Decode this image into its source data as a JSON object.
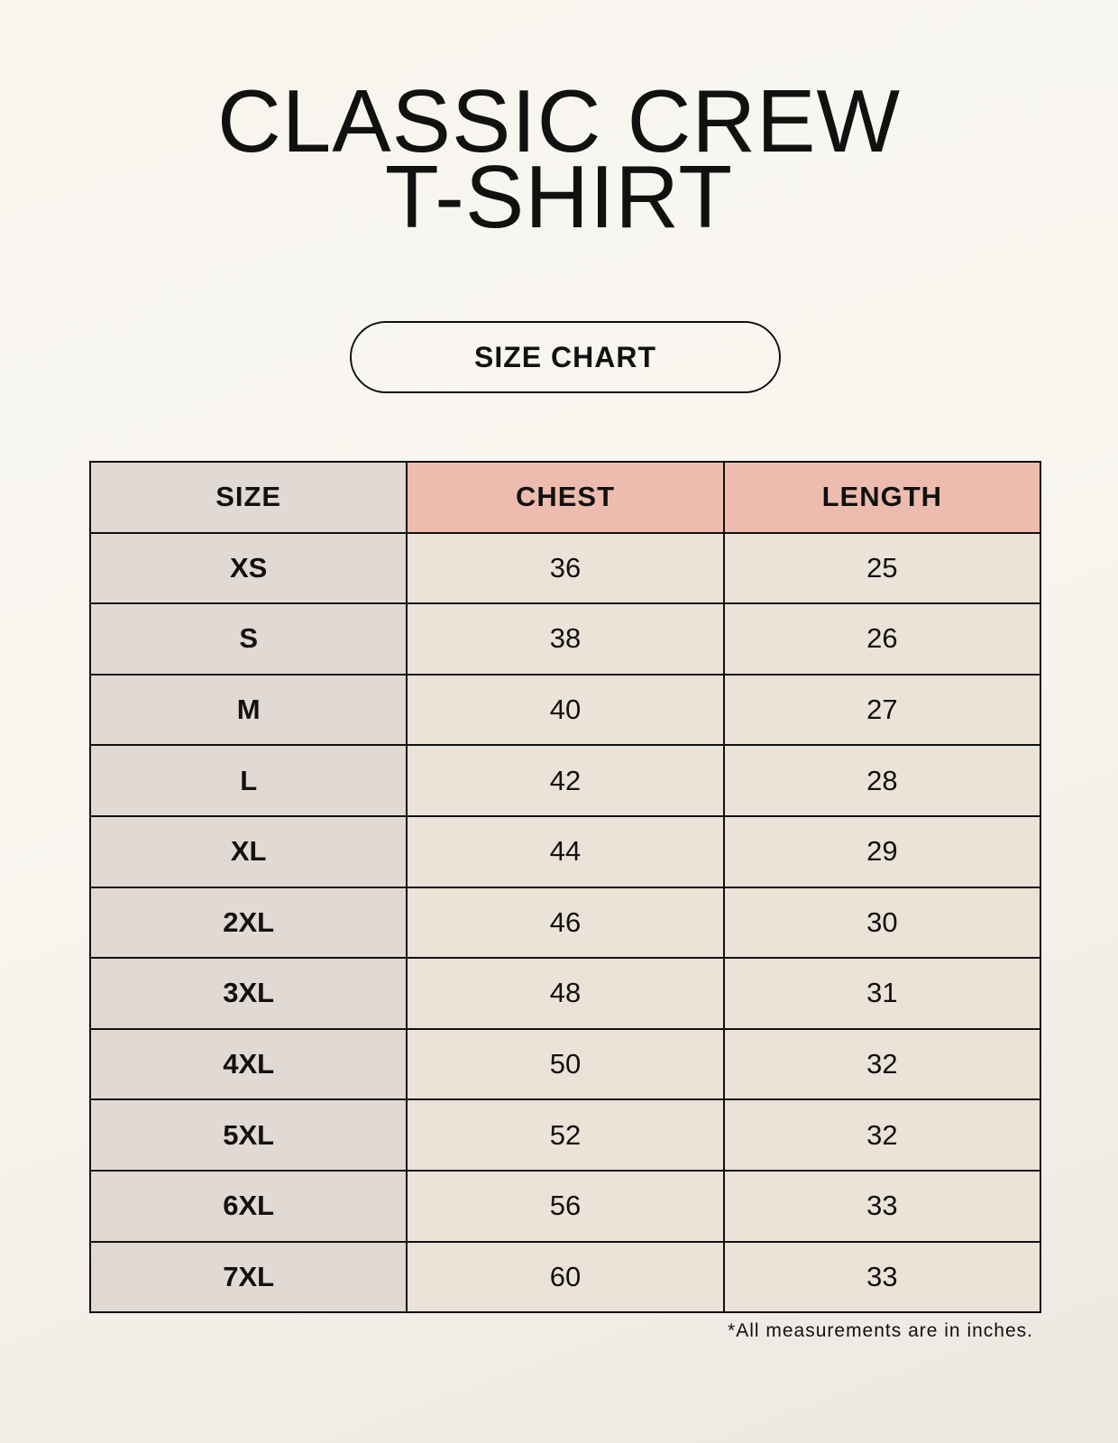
{
  "title_line1": "CLASSIC CREW",
  "title_line2": "T-SHIRT",
  "badge": "SIZE CHART",
  "table": {
    "headers": [
      "SIZE",
      "CHEST",
      "LENGTH"
    ],
    "rows": [
      [
        "XS",
        "36",
        "25"
      ],
      [
        "S",
        "38",
        "26"
      ],
      [
        "M",
        "40",
        "27"
      ],
      [
        "L",
        "42",
        "28"
      ],
      [
        "XL",
        "44",
        "29"
      ],
      [
        "2XL",
        "46",
        "30"
      ],
      [
        "3XL",
        "48",
        "31"
      ],
      [
        "4XL",
        "50",
        "32"
      ],
      [
        "5XL",
        "52",
        "32"
      ],
      [
        "6XL",
        "56",
        "33"
      ],
      [
        "7XL",
        "60",
        "33"
      ]
    ]
  },
  "footnote": "*All measurements are in inches.",
  "colors": {
    "header_accent": "#edbcae",
    "size_column": "#e1d9d3",
    "value_cells": "#ebe2d8"
  }
}
